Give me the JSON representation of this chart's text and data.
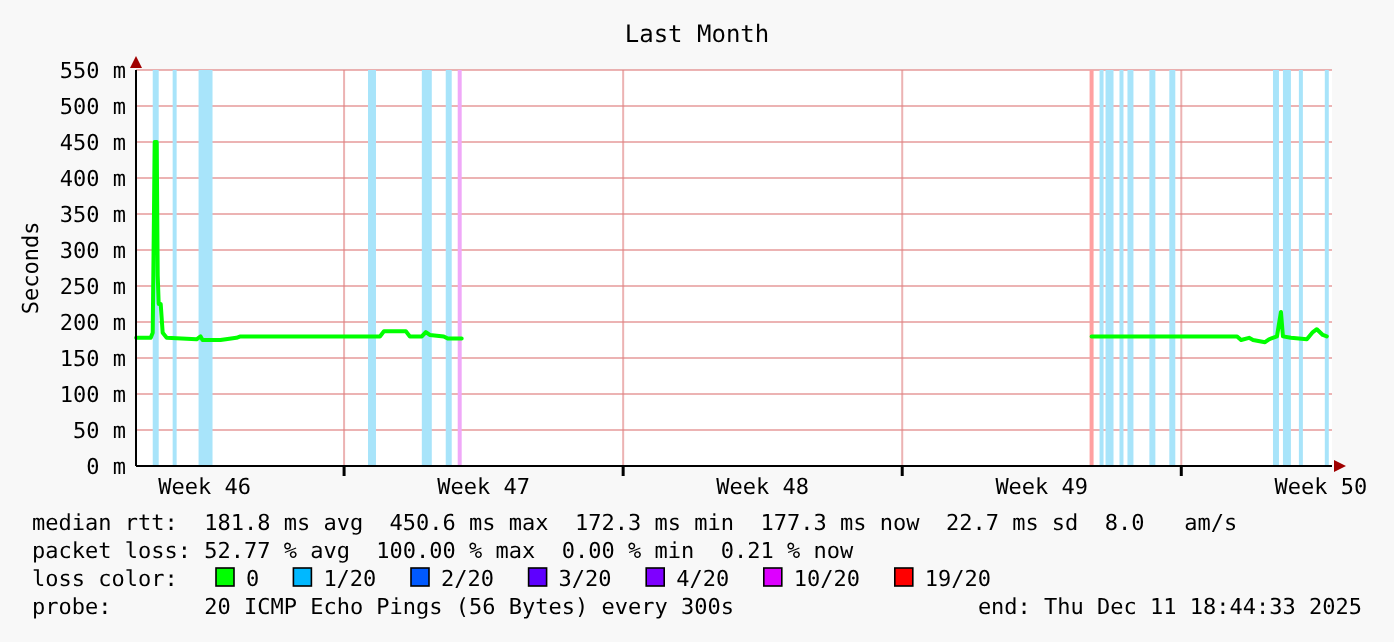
{
  "chart_data": {
    "type": "line",
    "title": "Last Month",
    "ylabel": "Seconds",
    "legend_title": "loss color:",
    "legend": "bottom",
    "grid": true,
    "x": [
      "2025-11-11T18:50",
      "2025-11-12T03:36",
      "2025-11-12T04:48",
      "2025-11-12T06:00",
      "2025-11-12T07:12",
      "2025-11-12T07:48",
      "2025-11-12T08:24",
      "2025-11-12T09:36",
      "2025-11-12T10:48",
      "2025-11-12T13:12",
      "2025-11-13T07:12",
      "2025-11-13T09:36",
      "2025-11-13T10:48",
      "2025-11-13T21:36",
      "2025-11-14T07:12",
      "2025-11-14T09:36",
      "2025-11-17T09:36",
      "2025-11-17T21:36",
      "2025-11-18T00:00",
      "2025-11-18T13:12",
      "2025-11-18T15:36",
      "2025-11-18T22:48",
      "2025-11-19T01:12",
      "2025-11-19T03:36",
      "2025-11-19T12:00",
      "2025-11-19T14:24",
      "2025-11-19T22:48",
      "2025-11-25T00:00",
      "2025-12-05T18:00",
      "2025-12-08T09:36",
      "2025-12-09T09:36",
      "2025-12-09T12:00",
      "2025-12-09T16:48",
      "2025-12-09T19:12",
      "2025-12-10T02:24",
      "2025-12-10T04:48",
      "2025-12-10T09:36",
      "2025-12-10T12:00",
      "2025-12-10T13:12",
      "2025-12-10T18:00",
      "2025-12-11T03:36",
      "2025-12-11T07:12",
      "2025-12-11T09:36",
      "2025-12-11T13:12",
      "2025-12-11T15:36"
    ],
    "series": [
      {
        "name": "0",
        "color": "#00ff00",
        "values": [
          178,
          178,
          185,
          450,
          450,
          265,
          225,
          225,
          185,
          178,
          176,
          180,
          175,
          175,
          178,
          180,
          180,
          180,
          187,
          187,
          180,
          180,
          186,
          182,
          180,
          177,
          177,
          null,
          180,
          180,
          180,
          175,
          178,
          175,
          172,
          176,
          180,
          214,
          180,
          178,
          176,
          186,
          190,
          182,
          180
        ]
      },
      {
        "name": "1/20",
        "color": "#00b8ff",
        "values": [
          null,
          null,
          null,
          null,
          null,
          null,
          null,
          null,
          null,
          null,
          null,
          null,
          null,
          null,
          null,
          null,
          null,
          null,
          null,
          null,
          null,
          null,
          null,
          null,
          null,
          null,
          null,
          null,
          null,
          null,
          null,
          null,
          null,
          null,
          null,
          null,
          null,
          null,
          null,
          null,
          null,
          null,
          null,
          null,
          null
        ]
      },
      {
        "name": "2/20",
        "color": "#0059ff",
        "values": [
          null,
          null,
          null,
          null,
          null,
          null,
          null,
          null,
          null,
          null,
          null,
          null,
          null,
          null,
          null,
          null,
          null,
          null,
          null,
          null,
          null,
          null,
          null,
          null,
          null,
          null,
          null,
          null,
          null,
          null,
          null,
          null,
          null,
          null,
          null,
          null,
          null,
          null,
          null,
          null,
          null,
          null,
          null,
          null,
          null
        ]
      },
      {
        "name": "3/20",
        "color": "#5e00ff",
        "values": [
          null,
          null,
          null,
          null,
          null,
          null,
          null,
          null,
          null,
          null,
          null,
          null,
          null,
          null,
          null,
          null,
          null,
          null,
          null,
          null,
          null,
          null,
          null,
          null,
          null,
          null,
          null,
          null,
          null,
          null,
          null,
          null,
          null,
          null,
          null,
          null,
          null,
          null,
          null,
          null,
          null,
          null,
          null,
          null,
          null
        ]
      },
      {
        "name": "4/20",
        "color": "#7e00ff",
        "values": [
          null,
          null,
          null,
          null,
          null,
          null,
          null,
          null,
          null,
          null,
          null,
          null,
          null,
          null,
          null,
          null,
          null,
          null,
          null,
          null,
          null,
          null,
          null,
          null,
          null,
          null,
          null,
          null,
          null,
          null,
          null,
          null,
          null,
          null,
          null,
          null,
          null,
          null,
          null,
          null,
          null,
          null,
          null,
          null,
          null
        ]
      },
      {
        "name": "10/20",
        "color": "#dd00ff",
        "values": [
          null,
          null,
          null,
          null,
          null,
          null,
          null,
          null,
          null,
          null,
          null,
          null,
          null,
          null,
          null,
          null,
          null,
          null,
          null,
          null,
          null,
          null,
          null,
          null,
          null,
          null,
          null,
          null,
          null,
          null,
          null,
          null,
          null,
          null,
          null,
          null,
          null,
          null,
          null,
          null,
          null,
          null,
          null,
          null,
          null
        ]
      },
      {
        "name": "19/20",
        "color": "#ff0000",
        "values": [
          null,
          null,
          null,
          null,
          null,
          null,
          null,
          null,
          null,
          null,
          null,
          null,
          null,
          null,
          null,
          null,
          null,
          null,
          null,
          null,
          null,
          null,
          null,
          null,
          null,
          null,
          null,
          null,
          null,
          null,
          null,
          null,
          null,
          null,
          null,
          null,
          null,
          null,
          null,
          null,
          null,
          null,
          null,
          null,
          null
        ]
      }
    ],
    "xlim": [
      "2025-11-11T18:44",
      "2025-12-11T18:44"
    ],
    "xticks": [
      {
        "value": "2025-11-13T12:00",
        "label": "Week 46"
      },
      {
        "value": "2025-11-17T00:00",
        "label": null
      },
      {
        "value": "2025-11-20T12:00",
        "label": "Week 47"
      },
      {
        "value": "2025-11-24T00:00",
        "label": null
      },
      {
        "value": "2025-11-27T12:00",
        "label": "Week 48"
      },
      {
        "value": "2025-12-01T00:00",
        "label": null
      },
      {
        "value": "2025-12-04T12:00",
        "label": "Week 49"
      },
      {
        "value": "2025-12-08T00:00",
        "label": null
      },
      {
        "value": "2025-12-11T12:00",
        "label": "Week 50"
      }
    ],
    "ylim": [
      0,
      550
    ],
    "yticks": [
      {
        "value": 0,
        "label": "0 m"
      },
      {
        "value": 50,
        "label": "50 m"
      },
      {
        "value": 100,
        "label": "100 m"
      },
      {
        "value": 150,
        "label": "150 m"
      },
      {
        "value": 200,
        "label": "200 m"
      },
      {
        "value": 250,
        "label": "250 m"
      },
      {
        "value": 300,
        "label": "300 m"
      },
      {
        "value": 350,
        "label": "350 m"
      },
      {
        "value": 400,
        "label": "400 m"
      },
      {
        "value": 450,
        "label": "450 m"
      },
      {
        "value": 500,
        "label": "500 m"
      },
      {
        "value": 550,
        "label": "550 m"
      }
    ],
    "bands": [
      {
        "axis": "x",
        "from": "2025-11-12T04:48",
        "to": "2025-11-12T08:24",
        "color": "#a8e4fa"
      },
      {
        "axis": "x",
        "from": "2025-11-12T16:48",
        "to": "2025-11-12T19:12",
        "color": "#a8e4fa"
      },
      {
        "axis": "x",
        "from": "2025-11-13T08:24",
        "to": "2025-11-13T16:48",
        "color": "#a8e4fa"
      },
      {
        "axis": "x",
        "from": "2025-11-17T14:24",
        "to": "2025-11-17T19:12",
        "color": "#a8e4fa"
      },
      {
        "axis": "x",
        "from": "2025-11-18T22:48",
        "to": "2025-11-19T04:48",
        "color": "#a8e4fa"
      },
      {
        "axis": "x",
        "from": "2025-11-19T13:12",
        "to": "2025-11-19T16:48",
        "color": "#a8e4fa"
      },
      {
        "axis": "x",
        "from": "2025-11-19T20:24",
        "to": "2025-11-19T22:48",
        "color": "#f0a8f8"
      },
      {
        "axis": "x",
        "from": "2025-12-05T16:48",
        "to": "2025-12-05T19:12",
        "color": "#ffa0a0"
      },
      {
        "axis": "x",
        "from": "2025-12-05T22:48",
        "to": "2025-12-06T01:12",
        "color": "#a8e4fa"
      },
      {
        "axis": "x",
        "from": "2025-12-06T02:24",
        "to": "2025-12-06T07:12",
        "color": "#a8e4fa"
      },
      {
        "axis": "x",
        "from": "2025-12-06T10:48",
        "to": "2025-12-06T13:12",
        "color": "#a8e4fa"
      },
      {
        "axis": "x",
        "from": "2025-12-06T15:36",
        "to": "2025-12-06T19:12",
        "color": "#a8e4fa"
      },
      {
        "axis": "x",
        "from": "2025-12-07T04:48",
        "to": "2025-12-07T08:24",
        "color": "#a8e4fa"
      },
      {
        "axis": "x",
        "from": "2025-12-07T16:48",
        "to": "2025-12-07T20:24",
        "color": "#a8e4fa"
      },
      {
        "axis": "x",
        "from": "2025-12-10T07:12",
        "to": "2025-12-10T10:48",
        "color": "#a8e4fa"
      },
      {
        "axis": "x",
        "from": "2025-12-10T13:12",
        "to": "2025-12-10T18:00",
        "color": "#a8e4fa"
      },
      {
        "axis": "x",
        "from": "2025-12-10T22:48",
        "to": "2025-12-11T01:12",
        "color": "#a8e4fa"
      },
      {
        "axis": "x",
        "from": "2025-12-11T14:24",
        "to": "2025-12-11T16:48",
        "color": "#a8e4fa"
      }
    ],
    "annotations": [
      "median rtt:  181.8 ms avg  450.6 ms max  172.3 ms min  177.3 ms now  22.7 ms sd  8.0   am/s",
      "packet loss: 52.77 % avg  100.00 % max  0.00 % min  0.21 % now",
      "probe:       20 ICMP Echo Pings (56 Bytes) every 300s",
      "end: Thu Dec 11 18:44:33 2025"
    ]
  }
}
